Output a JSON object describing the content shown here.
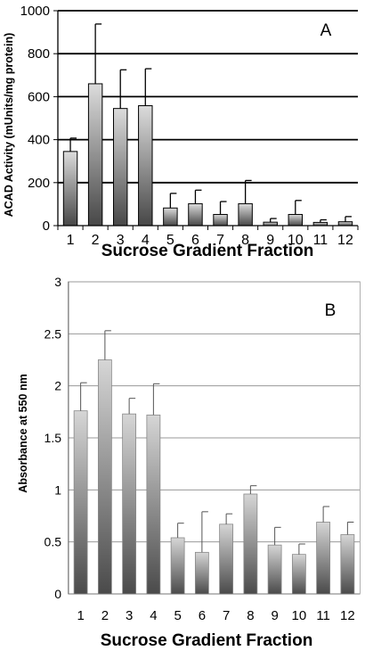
{
  "chart_data": [
    {
      "type": "bar",
      "panel_letter": "A",
      "title": "",
      "xlabel": "Sucrose Gradient Fraction",
      "ylabel": "ACAD Activity (mUnits/mg protein)",
      "ylim": [
        0,
        1000
      ],
      "yticks": [
        0,
        200,
        400,
        600,
        800,
        1000
      ],
      "ytick_labels": [
        "0",
        "200",
        "400",
        "600",
        "800",
        "1000"
      ],
      "grid": true,
      "categories": [
        "1",
        "2",
        "3",
        "4",
        "5",
        "6",
        "7",
        "8",
        "9",
        "10",
        "11",
        "12"
      ],
      "values": [
        345,
        660,
        545,
        558,
        82,
        102,
        52,
        102,
        16,
        52,
        15,
        18
      ],
      "error": [
        62,
        278,
        180,
        172,
        68,
        63,
        60,
        108,
        17,
        65,
        12,
        24
      ],
      "colors": {
        "bar_top": "#dcdcdc",
        "bar_bottom": "#474747",
        "bar_stroke": "#000000",
        "grid": "#000000"
      }
    },
    {
      "type": "bar",
      "panel_letter": "B",
      "title": "",
      "xlabel": "Sucrose Gradient Fraction",
      "ylabel": "Absorbance at 550 nm",
      "ylim": [
        0,
        3
      ],
      "yticks": [
        0,
        0.5,
        1,
        1.5,
        2,
        2.5,
        3
      ],
      "ytick_labels": [
        "0",
        "0.5",
        "1",
        "1.5",
        "2",
        "2.5",
        "3"
      ],
      "grid": true,
      "categories": [
        "1",
        "2",
        "3",
        "4",
        "5",
        "6",
        "7",
        "8",
        "9",
        "10",
        "11",
        "12"
      ],
      "values": [
        1.76,
        2.25,
        1.73,
        1.72,
        0.54,
        0.4,
        0.67,
        0.96,
        0.47,
        0.38,
        0.69,
        0.57
      ],
      "error": [
        0.27,
        0.28,
        0.15,
        0.3,
        0.14,
        0.39,
        0.1,
        0.08,
        0.17,
        0.1,
        0.15,
        0.12
      ],
      "colors": {
        "bar_top": "#d6d6d6",
        "bar_bottom": "#4a4a4a",
        "bar_stroke": "#888888",
        "grid": "#9a9a9a"
      }
    }
  ]
}
